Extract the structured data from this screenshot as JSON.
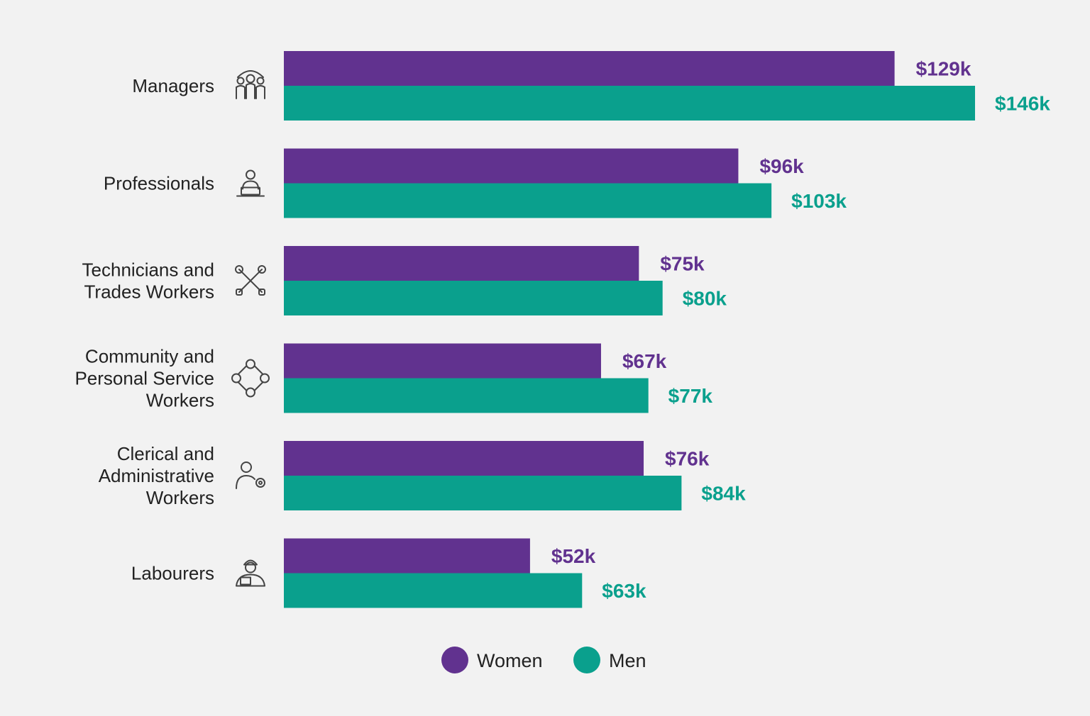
{
  "chart_data": {
    "type": "bar",
    "orientation": "horizontal",
    "categories": [
      [
        "Managers"
      ],
      [
        "Professionals"
      ],
      [
        "Technicians and",
        "Trades Workers"
      ],
      [
        "Community and",
        "Personal Service",
        "Workers"
      ],
      [
        "Clerical and",
        "Administrative",
        "Workers"
      ],
      [
        "Labourers"
      ]
    ],
    "icons": [
      "team-icon",
      "laptop-user-icon",
      "tools-icon",
      "network-icon",
      "user-gear-icon",
      "worker-icon"
    ],
    "series": [
      {
        "name": "Women",
        "color": "#61328f",
        "values": [
          129,
          96,
          75,
          67,
          76,
          52
        ],
        "labels": [
          "$129k",
          "$96k",
          "$75k",
          "$67k",
          "$76k",
          "$52k"
        ]
      },
      {
        "name": "Men",
        "color": "#0aa08d",
        "values": [
          146,
          103,
          80,
          77,
          84,
          63
        ],
        "labels": [
          "$146k",
          "$103k",
          "$80k",
          "$77k",
          "$84k",
          "$63k"
        ]
      }
    ],
    "grid": false,
    "legend_position": "bottom-center"
  }
}
